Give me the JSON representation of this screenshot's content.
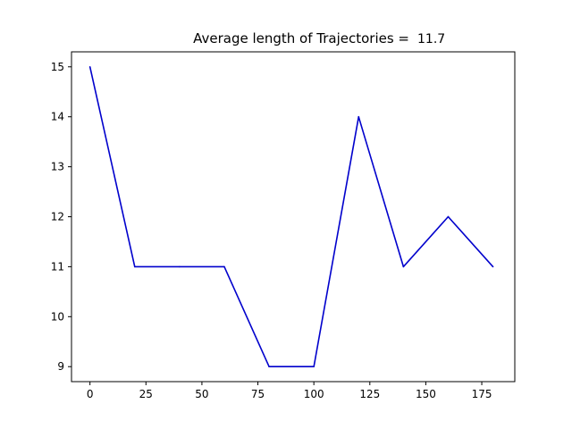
{
  "chart_data": {
    "type": "line",
    "title": "Average length of Trajectories =",
    "title_value": "11.7",
    "xlabel": "",
    "ylabel": "",
    "x": [
      0,
      20,
      40,
      60,
      80,
      100,
      120,
      140,
      160,
      180
    ],
    "series": [
      {
        "values": [
          15,
          11,
          11,
          11,
          9,
          9,
          14,
          11,
          12,
          11
        ],
        "color": "#0000cc"
      }
    ],
    "xlim": [
      -8.25,
      189.75
    ],
    "ylim": [
      8.7,
      15.3
    ],
    "xticks": [
      0,
      25,
      50,
      75,
      100,
      125,
      150,
      175
    ],
    "yticks": [
      9,
      10,
      11,
      12,
      13,
      14,
      15
    ],
    "grid": false,
    "legend": "none"
  }
}
